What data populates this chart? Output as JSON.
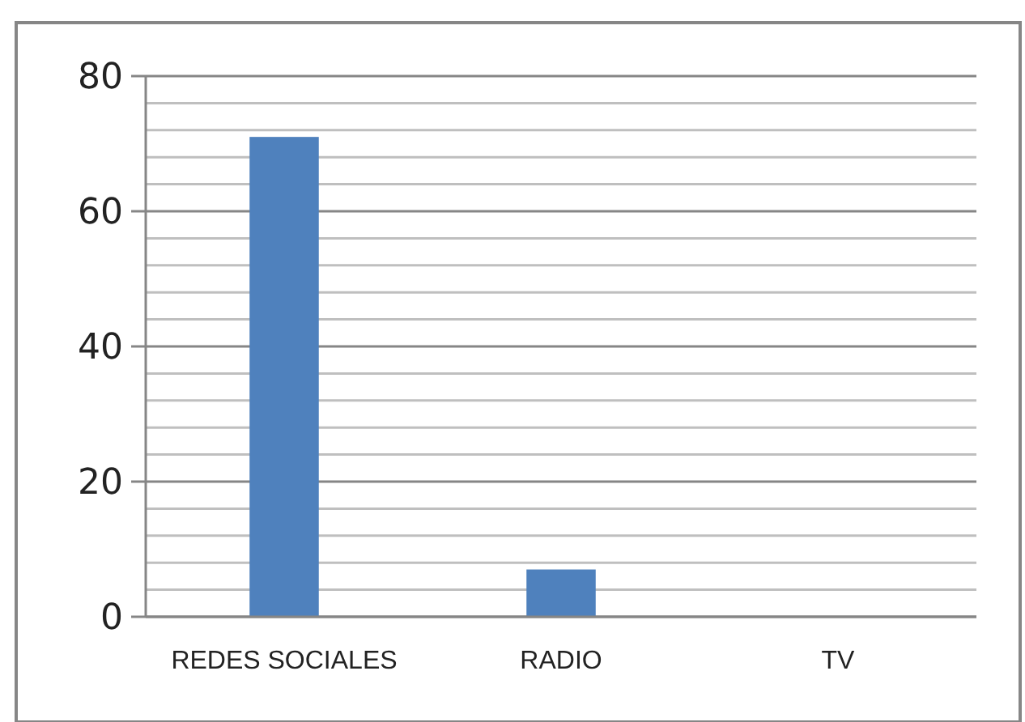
{
  "chart_data": {
    "type": "bar",
    "categories": [
      "REDES SOCIALES",
      "RADIO",
      "TV"
    ],
    "values": [
      71,
      7,
      0
    ],
    "color": "#4f81bd",
    "ylim": [
      0,
      80
    ],
    "yticks": [
      0,
      {
        "value": 4,
        "label": null
      },
      {
        "value": 8,
        "label": null
      },
      {
        "value": 12,
        "label": null
      },
      {
        "value": 16,
        "label": null
      },
      20,
      {
        "value": 24,
        "label": null
      },
      {
        "value": 28,
        "label": null
      },
      {
        "value": 32,
        "label": null
      },
      {
        "value": 36,
        "label": null
      },
      40,
      {
        "value": 44,
        "label": null
      },
      {
        "value": 48,
        "label": null
      },
      {
        "value": 52,
        "label": null
      },
      {
        "value": 56,
        "label": null
      },
      60,
      {
        "value": 64,
        "label": null
      },
      {
        "value": 68,
        "label": null
      },
      {
        "value": 72,
        "label": null
      },
      {
        "value": 76,
        "label": null
      },
      80
    ],
    "grid": true
  }
}
